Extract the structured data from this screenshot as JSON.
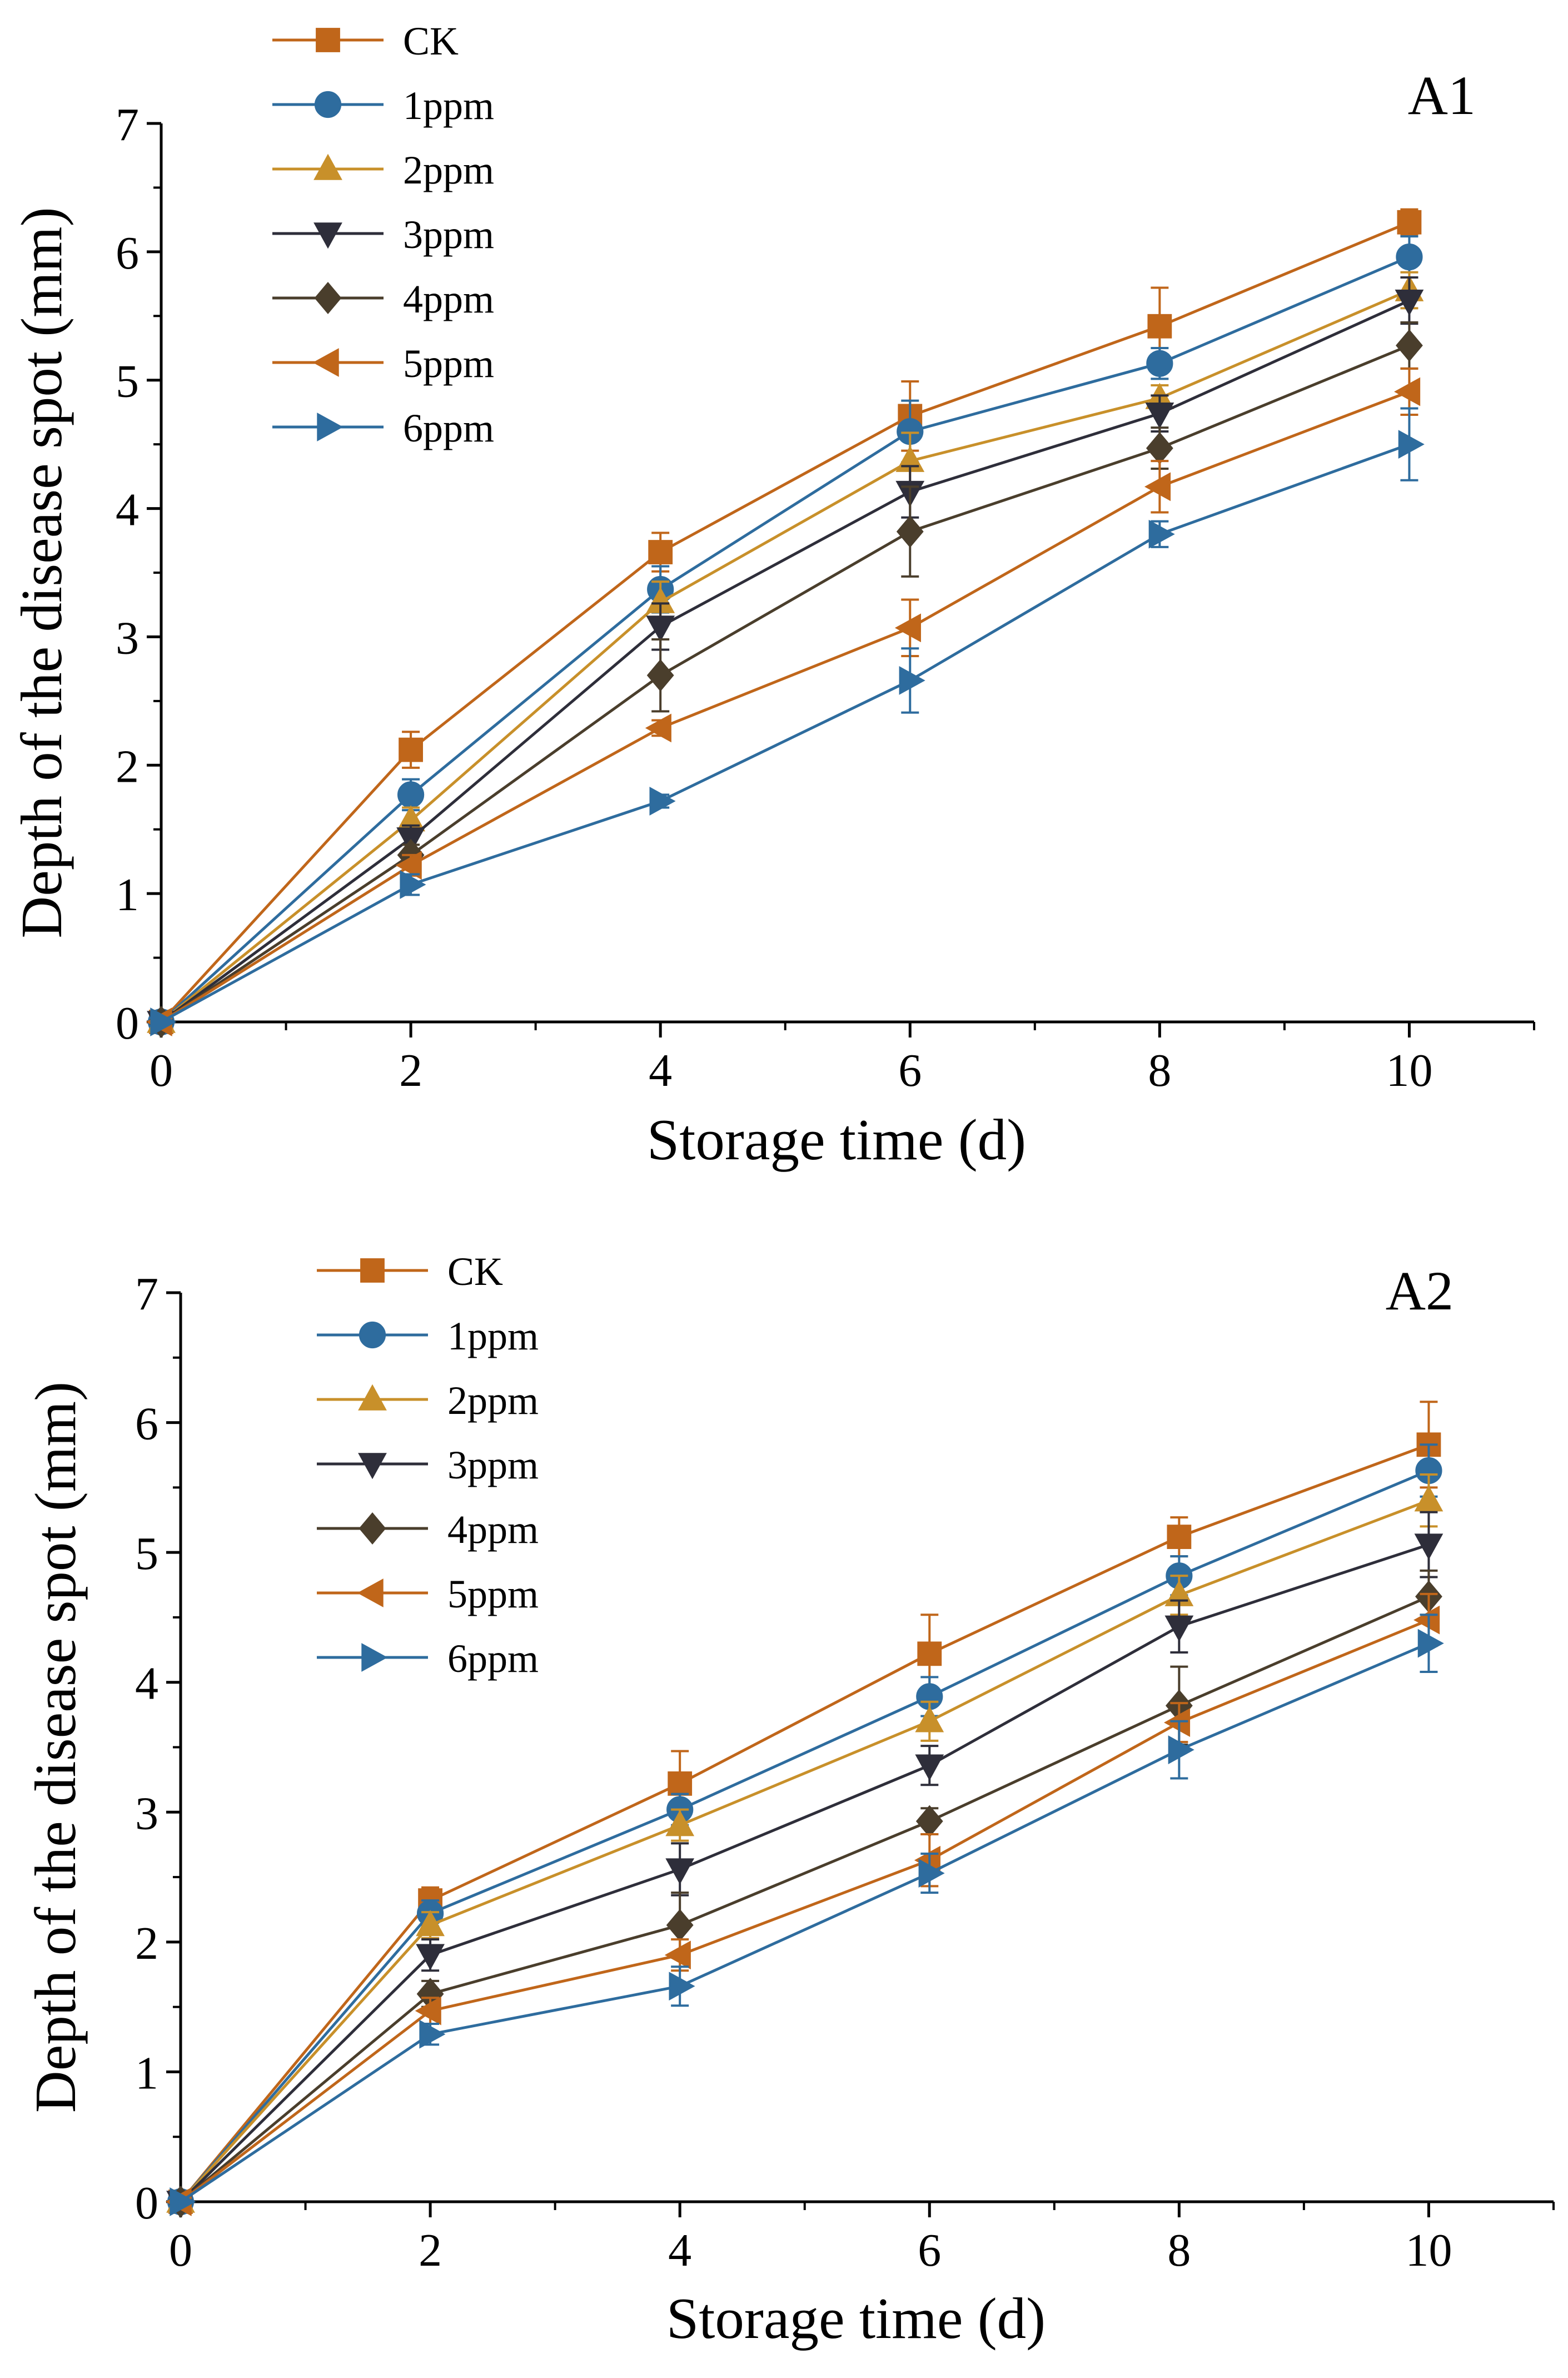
{
  "chart_data": [
    {
      "type": "line",
      "title": "A1",
      "xlabel": "Storage time (d)",
      "ylabel": "Depth of the disease spot (mm)",
      "xlim": [
        0,
        11
      ],
      "ylim": [
        0,
        7
      ],
      "xticks": [
        0,
        2,
        4,
        6,
        8,
        10
      ],
      "yticks": [
        0,
        1,
        2,
        3,
        4,
        5,
        6,
        7
      ],
      "x": [
        0,
        2,
        4,
        6,
        8,
        10
      ],
      "legend_position": "top-left",
      "series": [
        {
          "name": "CK",
          "marker": "square",
          "color": "#C0661A",
          "values": [
            0,
            2.12,
            3.66,
            4.72,
            5.42,
            6.23
          ],
          "errors": [
            0.02,
            0.14,
            0.15,
            0.27,
            0.3,
            0.1
          ]
        },
        {
          "name": "1ppm",
          "marker": "circle",
          "color": "#2E6C9E",
          "values": [
            0,
            1.77,
            3.37,
            4.6,
            5.13,
            5.96
          ],
          "errors": [
            0.02,
            0.12,
            0.18,
            0.24,
            0.12,
            0.16
          ]
        },
        {
          "name": "2ppm",
          "marker": "triangle-up",
          "color": "#C8902A",
          "values": [
            0,
            1.57,
            3.27,
            4.37,
            4.86,
            5.7
          ],
          "errors": [
            0.02,
            0.1,
            0.16,
            0.22,
            0.1,
            0.14
          ]
        },
        {
          "name": "3ppm",
          "marker": "triangle-down",
          "color": "#2E2E3A",
          "values": [
            0,
            1.43,
            3.08,
            4.13,
            4.74,
            5.62
          ],
          "errors": [
            0.02,
            0.1,
            0.18,
            0.2,
            0.14,
            0.18
          ]
        },
        {
          "name": "4ppm",
          "marker": "diamond",
          "color": "#4A3E2C",
          "values": [
            0,
            1.3,
            2.7,
            3.82,
            4.47,
            5.27
          ],
          "errors": [
            0.02,
            0.08,
            0.28,
            0.35,
            0.16,
            0.18
          ]
        },
        {
          "name": "5ppm",
          "marker": "triangle-left",
          "color": "#C0661A",
          "values": [
            0,
            1.22,
            2.29,
            3.07,
            4.17,
            4.91
          ],
          "errors": [
            0.02,
            0.08,
            0.06,
            0.22,
            0.2,
            0.18
          ]
        },
        {
          "name": "6ppm",
          "marker": "triangle-right",
          "color": "#2E6C9E",
          "values": [
            0,
            1.07,
            1.72,
            2.66,
            3.8,
            4.5
          ],
          "errors": [
            0.02,
            0.08,
            0.05,
            0.25,
            0.1,
            0.28
          ]
        }
      ]
    },
    {
      "type": "line",
      "title": "A2",
      "xlabel": "Storage time (d)",
      "ylabel": "Depth of the disease spot (mm)",
      "xlim": [
        0,
        11
      ],
      "ylim": [
        0,
        7
      ],
      "xticks": [
        0,
        2,
        4,
        6,
        8,
        10
      ],
      "yticks": [
        0,
        1,
        2,
        3,
        4,
        5,
        6,
        7
      ],
      "x": [
        0,
        2,
        4,
        6,
        8,
        10
      ],
      "legend_position": "top-left",
      "series": [
        {
          "name": "CK",
          "marker": "square",
          "color": "#C0661A",
          "values": [
            0,
            2.32,
            3.22,
            4.22,
            5.12,
            5.83
          ],
          "errors": [
            0.02,
            0.1,
            0.25,
            0.3,
            0.15,
            0.33
          ]
        },
        {
          "name": "1ppm",
          "marker": "circle",
          "color": "#2E6C9E",
          "values": [
            0,
            2.22,
            3.02,
            3.89,
            4.82,
            5.63
          ],
          "errors": [
            0.02,
            0.1,
            0.12,
            0.15,
            0.15,
            0.2
          ]
        },
        {
          "name": "2ppm",
          "marker": "triangle-up",
          "color": "#C8902A",
          "values": [
            0,
            2.13,
            2.9,
            3.7,
            4.67,
            5.4
          ],
          "errors": [
            0.02,
            0.1,
            0.12,
            0.15,
            0.15,
            0.2
          ]
        },
        {
          "name": "3ppm",
          "marker": "triangle-down",
          "color": "#2E2E3A",
          "values": [
            0,
            1.9,
            2.56,
            3.36,
            4.43,
            5.06
          ],
          "errors": [
            0.02,
            0.12,
            0.2,
            0.15,
            0.2,
            0.25
          ]
        },
        {
          "name": "4ppm",
          "marker": "diamond",
          "color": "#4A3E2C",
          "values": [
            0,
            1.6,
            2.13,
            2.93,
            3.82,
            4.66
          ],
          "errors": [
            0.02,
            0.1,
            0.25,
            0.1,
            0.3,
            0.2
          ]
        },
        {
          "name": "5ppm",
          "marker": "triangle-left",
          "color": "#C0661A",
          "values": [
            0,
            1.47,
            1.9,
            2.63,
            3.69,
            4.48
          ],
          "errors": [
            0.02,
            0.1,
            0.12,
            0.2,
            0.15,
            0.2
          ]
        },
        {
          "name": "6ppm",
          "marker": "triangle-right",
          "color": "#2E6C9E",
          "values": [
            0,
            1.29,
            1.66,
            2.53,
            3.48,
            4.3
          ],
          "errors": [
            0.02,
            0.08,
            0.15,
            0.15,
            0.22,
            0.22
          ]
        }
      ]
    }
  ]
}
